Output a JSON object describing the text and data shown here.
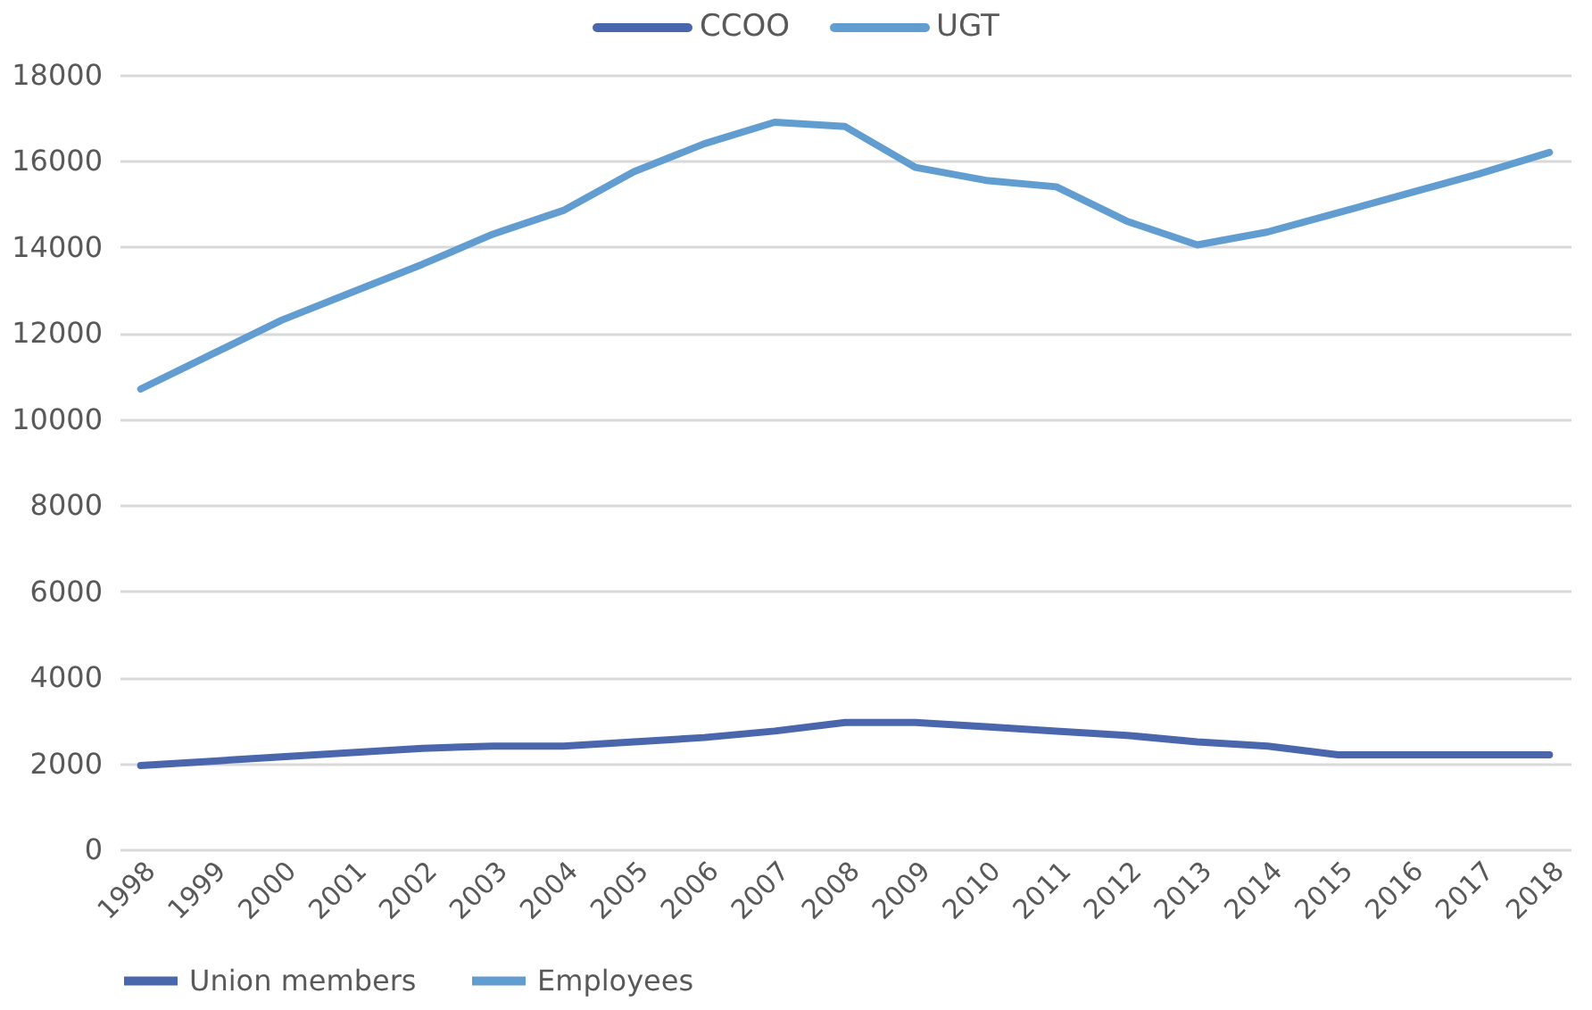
{
  "chart_data": {
    "type": "line",
    "categories": [
      "1998",
      "1999",
      "2000",
      "2001",
      "2002",
      "2003",
      "2004",
      "2005",
      "2006",
      "2007",
      "2008",
      "2009",
      "2010",
      "2011",
      "2012",
      "2013",
      "2014",
      "2015",
      "2016",
      "2017",
      "2018"
    ],
    "series": [
      {
        "name": "Union members",
        "color": "#4a66ac",
        "values": [
          1950,
          2050,
          2150,
          2250,
          2350,
          2400,
          2400,
          2500,
          2600,
          2750,
          2950,
          2950,
          2850,
          2750,
          2650,
          2500,
          2400,
          2200,
          2200,
          2200,
          2200
        ]
      },
      {
        "name": "Employees",
        "color": "#629dd1",
        "values": [
          10700,
          11500,
          12300,
          12950,
          13600,
          14300,
          14850,
          15750,
          16400,
          16900,
          16800,
          15850,
          15550,
          15400,
          14600,
          14050,
          14350,
          14800,
          15250,
          15700,
          16200
        ]
      }
    ],
    "annotations": [
      "CCOO",
      "UGT"
    ],
    "ylim": [
      0,
      18000
    ],
    "yticks": [
      0,
      2000,
      4000,
      6000,
      8000,
      10000,
      12000,
      14000,
      16000,
      18000
    ],
    "grid": "y",
    "legend": "bottom",
    "marker": "none",
    "line_style": "solid"
  }
}
